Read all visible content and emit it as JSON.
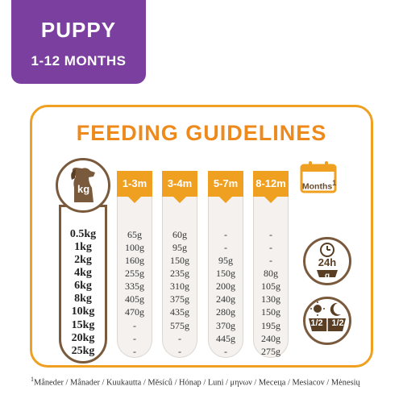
{
  "badge": {
    "line1": "PUPPY",
    "line2": "1-12 MONTHS"
  },
  "title": "FEEDING GUIDELINES",
  "weight_unit": "kg",
  "weights": [
    "0.5kg",
    "1kg",
    "2kg",
    "4kg",
    "6kg",
    "8kg",
    "10kg",
    "15kg",
    "20kg",
    "25kg"
  ],
  "columns": [
    {
      "label": "1-3m",
      "values": [
        "65g",
        "100g",
        "160g",
        "255g",
        "335g",
        "405g",
        "470g",
        "-",
        "-",
        "-"
      ]
    },
    {
      "label": "3-4m",
      "values": [
        "60g",
        "95g",
        "150g",
        "235g",
        "310g",
        "375g",
        "435g",
        "575g",
        "-",
        "-"
      ]
    },
    {
      "label": "5-7m",
      "values": [
        "-",
        "-",
        "95g",
        "150g",
        "200g",
        "240g",
        "280g",
        "370g",
        "445g",
        "-"
      ]
    },
    {
      "label": "8-12m",
      "values": [
        "-",
        "-",
        "-",
        "80g",
        "105g",
        "130g",
        "150g",
        "195g",
        "240g",
        "275g"
      ]
    }
  ],
  "months_label": "Months",
  "months_sup": "1",
  "daily": {
    "hours": "24h",
    "unit": "g"
  },
  "split": {
    "left": "1/2",
    "right": "1/2"
  },
  "footer": {
    "sup": "1",
    "text": "Måneder / Månader / Kuukautta / Měsíců / Hónap / Luni / μηνων / Месеца / Mesiacov / Mėnesių"
  },
  "colors": {
    "purple": "#7b3fa0",
    "orange": "#f0a020",
    "brown": "#7a5a3c"
  }
}
